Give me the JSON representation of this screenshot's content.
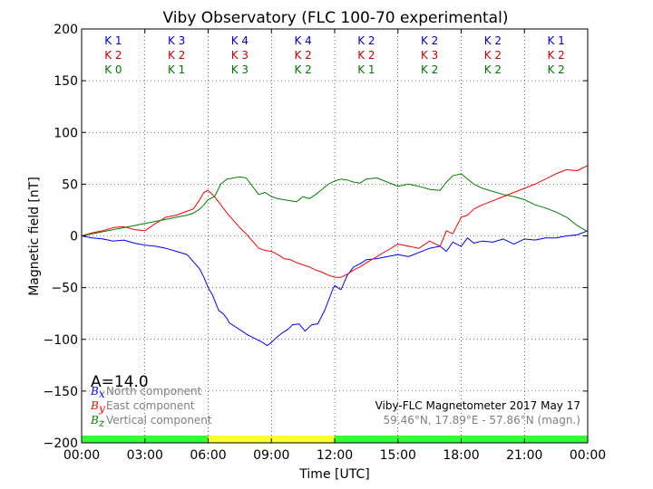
{
  "chart_data": {
    "type": "line",
    "title": "Viby Observatory (FLC 100-70 experimental)",
    "xlabel": "Time [UTC]",
    "ylabel": "Magnetic field [nT]",
    "xlim": [
      0,
      24
    ],
    "ylim": [
      -200,
      200
    ],
    "grid": true,
    "x_ticks": [
      0,
      3,
      6,
      9,
      12,
      15,
      18,
      21,
      24
    ],
    "x_tick_labels": [
      "00:00",
      "03:00",
      "06:00",
      "09:00",
      "12:00",
      "15:00",
      "18:00",
      "21:00",
      "00:00"
    ],
    "y_ticks": [
      -200,
      -150,
      -100,
      -50,
      0,
      50,
      100,
      150,
      200
    ],
    "y_tick_labels": [
      "−200",
      "−150",
      "−100",
      "−50",
      "0",
      "50",
      "100",
      "150",
      "200"
    ],
    "colors": {
      "north": "#0000ff",
      "east": "#ff0000",
      "vertical": "#008000",
      "k_blue": "#0000cc",
      "k_red": "#cc0000",
      "k_green": "#007700"
    },
    "k_index_rows": [
      [
        "K 1",
        "K 3",
        "K 4",
        "K 4",
        "K 2",
        "K 2",
        "K 2",
        "K 1"
      ],
      [
        "K 2",
        "K 2",
        "K 3",
        "K 2",
        "K 2",
        "K 3",
        "K 2",
        "K 2"
      ],
      [
        "K 0",
        "K 1",
        "K 3",
        "K 2",
        "K 1",
        "K 2",
        "K 2",
        "K 2"
      ]
    ],
    "a_index": "A=14.0",
    "legend": [
      {
        "symbol": "B",
        "sub": "x",
        "label": "North component",
        "color": "#0000ff"
      },
      {
        "symbol": "B",
        "sub": "y",
        "label": "East component",
        "color": "#ff0000"
      },
      {
        "symbol": "B",
        "sub": "z",
        "label": "Vertical component",
        "color": "#008000"
      }
    ],
    "annotation_line1": "Viby-FLC Magnetometer 2017 May 17",
    "annotation_line2": "59.46°N, 17.89°E - 57.86°N (magn.)",
    "status_bar": [
      {
        "from": 0,
        "to": 6,
        "color": "#33ff33"
      },
      {
        "from": 6,
        "to": 12,
        "color": "#ffff33"
      },
      {
        "from": 12,
        "to": 24,
        "color": "#33ff33"
      }
    ],
    "series": [
      {
        "name": "North component",
        "color": "#0000ff",
        "x": [
          0,
          0.5,
          1,
          1.5,
          2,
          2.5,
          3,
          3.5,
          4,
          4.5,
          5,
          5.3,
          5.6,
          5.8,
          6,
          6.2,
          6.5,
          6.7,
          6.9,
          7,
          7.3,
          7.6,
          7.9,
          8.2,
          8.5,
          8.8,
          9,
          9.2,
          9.5,
          9.8,
          10,
          10.3,
          10.6,
          10.9,
          11.2,
          11.5,
          11.7,
          11.9,
          12,
          12.3,
          12.6,
          12.9,
          13.2,
          13.5,
          14,
          14.5,
          15,
          15.5,
          16,
          16.5,
          17,
          17.3,
          17.6,
          18,
          18.3,
          18.6,
          19,
          19.5,
          20,
          20.5,
          21,
          21.5,
          22,
          22.5,
          23,
          23.5,
          24
        ],
        "y": [
          0,
          -2,
          -3,
          -5,
          -4,
          -7,
          -9,
          -10,
          -12,
          -15,
          -18,
          -25,
          -32,
          -40,
          -50,
          -57,
          -72,
          -75,
          -80,
          -84,
          -88,
          -92,
          -96,
          -99,
          -102,
          -106,
          -103,
          -99,
          -94,
          -90,
          -86,
          -85,
          -92,
          -86,
          -85,
          -73,
          -63,
          -52,
          -48,
          -52,
          -38,
          -30,
          -27,
          -23,
          -22,
          -20,
          -18,
          -20,
          -16,
          -12,
          -10,
          -15,
          -6,
          -10,
          -2,
          -7,
          -5,
          -6,
          -3,
          -8,
          -3,
          -4,
          -2,
          -2,
          0,
          1,
          5
        ]
      },
      {
        "name": "East component",
        "color": "#ff0000",
        "x": [
          0,
          0.5,
          1,
          1.5,
          2,
          2.5,
          3,
          3.5,
          4,
          4.5,
          5,
          5.3,
          5.6,
          5.8,
          6,
          6.3,
          6.6,
          6.9,
          7.2,
          7.5,
          7.8,
          8.1,
          8.4,
          8.7,
          9,
          9.3,
          9.6,
          9.9,
          10.2,
          10.5,
          10.8,
          11.1,
          11.4,
          11.7,
          12,
          12.3,
          12.6,
          12.9,
          13.2,
          13.5,
          14,
          14.5,
          15,
          15.5,
          16,
          16.5,
          17,
          17.3,
          17.6,
          18,
          18.3,
          18.6,
          19,
          19.5,
          20,
          20.5,
          21,
          21.5,
          22,
          22.5,
          23,
          23.5,
          24
        ],
        "y": [
          0,
          3,
          5,
          8,
          9,
          6,
          5,
          12,
          18,
          20,
          24,
          26,
          35,
          42,
          44,
          38,
          30,
          22,
          15,
          8,
          2,
          -5,
          -12,
          -14,
          -15,
          -18,
          -22,
          -23,
          -26,
          -28,
          -30,
          -33,
          -35,
          -38,
          -40,
          -40,
          -37,
          -33,
          -30,
          -26,
          -20,
          -14,
          -8,
          -10,
          -12,
          -5,
          -10,
          5,
          2,
          18,
          20,
          26,
          30,
          34,
          38,
          42,
          46,
          50,
          55,
          60,
          64,
          63,
          68
        ]
      },
      {
        "name": "Vertical component",
        "color": "#008000",
        "x": [
          0,
          0.5,
          1,
          1.5,
          2,
          2.5,
          3,
          3.5,
          4,
          4.5,
          5,
          5.3,
          5.6,
          5.8,
          6,
          6.3,
          6.6,
          6.9,
          7.2,
          7.5,
          7.8,
          8.1,
          8.4,
          8.7,
          9,
          9.3,
          9.6,
          9.9,
          10.2,
          10.5,
          10.8,
          11.1,
          11.4,
          11.7,
          12,
          12.3,
          12.6,
          12.9,
          13.2,
          13.5,
          14,
          14.5,
          15,
          15.5,
          16,
          16.5,
          17,
          17.3,
          17.6,
          18,
          18.3,
          18.6,
          19,
          19.5,
          20,
          20.5,
          21,
          21.5,
          22,
          22.5,
          23,
          23.5,
          24
        ],
        "y": [
          0,
          2,
          4,
          6,
          8,
          10,
          12,
          14,
          16,
          18,
          20,
          22,
          26,
          30,
          35,
          38,
          50,
          55,
          56,
          57,
          56,
          48,
          40,
          42,
          38,
          36,
          35,
          34,
          33,
          38,
          36,
          40,
          45,
          50,
          53,
          55,
          54,
          52,
          51,
          55,
          56,
          52,
          48,
          50,
          48,
          45,
          44,
          52,
          58,
          60,
          55,
          50,
          46,
          43,
          40,
          38,
          35,
          30,
          27,
          23,
          18,
          10,
          4
        ]
      }
    ]
  }
}
